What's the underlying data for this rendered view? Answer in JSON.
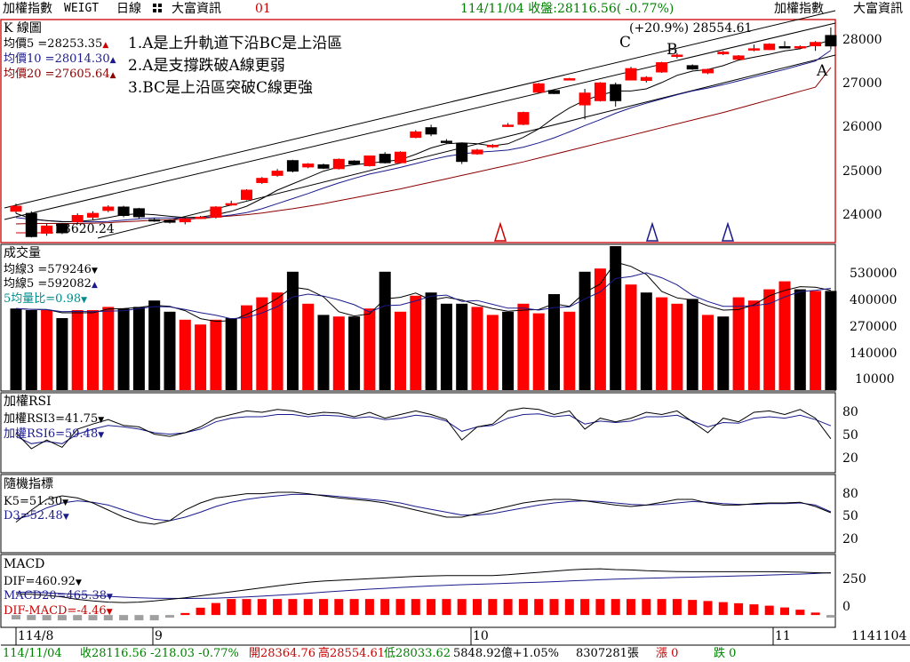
{
  "topbar": {
    "index_name": "加權指數",
    "code": "WEIGT",
    "period": "日線",
    "vendor": "大富資訊",
    "page_no": "01",
    "quote": "114/11/04 收盤:28116.56( -0.77%)",
    "right_name": "加權指數",
    "right_vendor": "大富資訊"
  },
  "colors": {
    "up": "#ff0000",
    "down": "#000000",
    "ma5": "#000000",
    "ma10": "#1a1a8c",
    "ma20": "#8b0000",
    "quote_green": "#008000",
    "frame_red": "#cc0000",
    "vol_ratio_cyan": "#008b8b"
  },
  "kline": {
    "title": "K 線圖",
    "ma_labels": [
      "均價5 =28253.35",
      "均價10 =28014.30",
      "均價20 =27605.64"
    ],
    "high_note": "(+20.9%) 28554.61",
    "low_note": "23620.24",
    "notes": [
      "1.A是上升軌道下沿BC是上沿區",
      "2.A是支撐跌破A線更弱",
      "3.BC是上沿區突破C線更強"
    ],
    "trend_labels": [
      "A",
      "B",
      "C"
    ],
    "y_ticks": [
      "28000",
      "27000",
      "26000",
      "25000",
      "24000"
    ]
  },
  "volume": {
    "title": "成交量",
    "labels": [
      "均線3 =579246",
      "均線5 =592082",
      "5均量比=0.98"
    ],
    "y_ticks": [
      "530000",
      "400000",
      "270000",
      "140000",
      "10000"
    ]
  },
  "rsi": {
    "title": "加權RSI",
    "labels": [
      "加權RSI3=41.75",
      "加權RSI6=59.48"
    ],
    "y_ticks": [
      "80",
      "50",
      "20"
    ]
  },
  "kd": {
    "title": "隨機指標",
    "labels": [
      "K5=51.30",
      "D3=52.48"
    ],
    "y_ticks": [
      "80",
      "50",
      "20"
    ]
  },
  "macd": {
    "title": "MACD",
    "labels": [
      "DIF=460.92",
      "MACD20=465.38",
      "DIF-MACD=-4.46"
    ],
    "y_ticks": [
      "250",
      "0"
    ]
  },
  "x_axis": {
    "labels": [
      "114/8",
      "9",
      "10",
      "11"
    ],
    "right_label": "1141104"
  },
  "bottombar": {
    "date": "114/11/04",
    "close": "收28116.56 -218.03 -0.77%",
    "open": "開28364.76",
    "high": "高28554.61",
    "low": "低28033.62",
    "amount": "5848.92億+1.05%",
    "volume": "8307281張",
    "up_label": "漲 0",
    "down_label": "跌 0"
  },
  "chart_data": {
    "type": "candlestick",
    "candles": [
      {
        "o": 24200,
        "c": 24320,
        "h": 24380,
        "l": 24150
      },
      {
        "o": 24150,
        "c": 23600,
        "h": 24200,
        "l": 23580
      },
      {
        "o": 23680,
        "c": 23850,
        "h": 23900,
        "l": 23620
      },
      {
        "o": 23900,
        "c": 23690,
        "h": 23920,
        "l": 23660
      },
      {
        "o": 23950,
        "c": 24100,
        "h": 24150,
        "l": 23900
      },
      {
        "o": 24060,
        "c": 24150,
        "h": 24200,
        "l": 24000
      },
      {
        "o": 24220,
        "c": 24300,
        "h": 24340,
        "l": 24180
      },
      {
        "o": 24300,
        "c": 24100,
        "h": 24330,
        "l": 24060
      },
      {
        "o": 24260,
        "c": 24070,
        "h": 24280,
        "l": 24020
      },
      {
        "o": 24000,
        "c": 23990,
        "h": 24040,
        "l": 23950
      },
      {
        "o": 23980,
        "c": 23940,
        "h": 24010,
        "l": 23910
      },
      {
        "o": 23950,
        "c": 24020,
        "h": 24060,
        "l": 23890
      },
      {
        "o": 24050,
        "c": 24060,
        "h": 24090,
        "l": 24020
      },
      {
        "o": 24060,
        "c": 24300,
        "h": 24320,
        "l": 24030
      },
      {
        "o": 24360,
        "c": 24380,
        "h": 24450,
        "l": 24330
      },
      {
        "o": 24480,
        "c": 24700,
        "h": 24720,
        "l": 24460
      },
      {
        "o": 24880,
        "c": 24980,
        "h": 25010,
        "l": 24850
      },
      {
        "o": 25050,
        "c": 25150,
        "h": 25200,
        "l": 25020
      },
      {
        "o": 25400,
        "c": 25150,
        "h": 25420,
        "l": 25120
      },
      {
        "o": 25250,
        "c": 25320,
        "h": 25340,
        "l": 25220
      },
      {
        "o": 25300,
        "c": 25220,
        "h": 25330,
        "l": 25200
      },
      {
        "o": 25210,
        "c": 25430,
        "h": 25450,
        "l": 25190
      },
      {
        "o": 25390,
        "c": 25320,
        "h": 25410,
        "l": 25300
      },
      {
        "o": 25280,
        "c": 25510,
        "h": 25520,
        "l": 25260
      },
      {
        "o": 25550,
        "c": 25350,
        "h": 25600,
        "l": 25330
      },
      {
        "o": 25350,
        "c": 25600,
        "h": 25620,
        "l": 25330
      },
      {
        "o": 25950,
        "c": 26080,
        "h": 26120,
        "l": 25930
      },
      {
        "o": 26180,
        "c": 26030,
        "h": 26250,
        "l": 25980
      },
      {
        "o": 25860,
        "c": 25840,
        "h": 25910,
        "l": 25800
      },
      {
        "o": 25810,
        "c": 25380,
        "h": 25820,
        "l": 25320
      },
      {
        "o": 25560,
        "c": 25650,
        "h": 25680,
        "l": 25540
      },
      {
        "o": 25750,
        "c": 25760,
        "h": 25790,
        "l": 25700
      },
      {
        "o": 26220,
        "c": 26240,
        "h": 26290,
        "l": 26200
      },
      {
        "o": 26260,
        "c": 26540,
        "h": 26560,
        "l": 26240
      },
      {
        "o": 27020,
        "c": 27220,
        "h": 27240,
        "l": 27000
      },
      {
        "o": 27060,
        "c": 26990,
        "h": 27080,
        "l": 26980
      },
      {
        "o": 27320,
        "c": 27340,
        "h": 27360,
        "l": 27300
      },
      {
        "o": 26720,
        "c": 27000,
        "h": 27100,
        "l": 26380
      },
      {
        "o": 26820,
        "c": 27240,
        "h": 27260,
        "l": 26800
      },
      {
        "o": 27200,
        "c": 26820,
        "h": 27250,
        "l": 26680
      },
      {
        "o": 27310,
        "c": 27580,
        "h": 27620,
        "l": 27300
      },
      {
        "o": 27300,
        "c": 27370,
        "h": 27400,
        "l": 27250
      },
      {
        "o": 27500,
        "c": 27720,
        "h": 27740,
        "l": 27480
      },
      {
        "o": 27870,
        "c": 27900,
        "h": 27950,
        "l": 27820
      },
      {
        "o": 27650,
        "c": 27570,
        "h": 27680,
        "l": 27550
      },
      {
        "o": 27480,
        "c": 27560,
        "h": 27580,
        "l": 27450
      },
      {
        "o": 27930,
        "c": 27970,
        "h": 28000,
        "l": 27900
      },
      {
        "o": 27800,
        "c": 27880,
        "h": 27900,
        "l": 27780
      },
      {
        "o": 28020,
        "c": 28050,
        "h": 28150,
        "l": 27990
      },
      {
        "o": 28030,
        "c": 28160,
        "h": 28180,
        "l": 28020
      },
      {
        "o": 28100,
        "c": 28080,
        "h": 28230,
        "l": 28060
      },
      {
        "o": 28070,
        "c": 28100,
        "h": 28130,
        "l": 28040
      },
      {
        "o": 28120,
        "c": 28200,
        "h": 28230,
        "l": 28000
      },
      {
        "o": 28364.76,
        "c": 28116.56,
        "h": 28554.61,
        "l": 28033.62
      }
    ],
    "ma5": [
      24150,
      24020,
      23980,
      23950,
      23960,
      23990,
      24050,
      24120,
      24140,
      24120,
      24080,
      24050,
      24060,
      24120,
      24200,
      24320,
      24500,
      24700,
      24850,
      25000,
      25150,
      25250,
      25300,
      25340,
      25380,
      25420,
      25550,
      25700,
      25800,
      25820,
      25800,
      25750,
      25800,
      25950,
      26150,
      26420,
      26650,
      26830,
      26950,
      27050,
      27050,
      27100,
      27250,
      27420,
      27520,
      27560,
      27650,
      27780,
      27850,
      27920,
      28000,
      28050,
      28150,
      28253.35
    ],
    "ma10": [
      24050,
      24010,
      23980,
      23960,
      23950,
      23950,
      23960,
      23990,
      24020,
      24040,
      24040,
      24040,
      24050,
      24070,
      24110,
      24170,
      24260,
      24380,
      24500,
      24620,
      24750,
      24870,
      24980,
      25080,
      25160,
      25240,
      25330,
      25420,
      25500,
      25560,
      25600,
      25620,
      25650,
      25720,
      25820,
      25940,
      26080,
      26230,
      26370,
      26520,
      26650,
      26760,
      26860,
      26960,
      27050,
      27120,
      27200,
      27290,
      27380,
      27470,
      27560,
      27660,
      27760,
      28014.3
    ],
    "ma20": [
      23900,
      23910,
      23910,
      23910,
      23910,
      23920,
      23930,
      23950,
      23970,
      23990,
      24000,
      24010,
      24030,
      24060,
      24090,
      24120,
      24160,
      24210,
      24260,
      24320,
      24380,
      24450,
      24520,
      24590,
      24660,
      24730,
      24810,
      24890,
      24970,
      25050,
      25130,
      25210,
      25290,
      25370,
      25460,
      25550,
      25640,
      25730,
      25820,
      25910,
      26000,
      26090,
      26180,
      26270,
      26360,
      26450,
      26540,
      26640,
      26740,
      26840,
      26940,
      27040,
      27140,
      27605.64
    ],
    "volume": {
      "values": [
        510000,
        500000,
        500000,
        450000,
        500000,
        500000,
        520000,
        510000,
        520000,
        560000,
        490000,
        440000,
        410000,
        440000,
        450000,
        530000,
        580000,
        610000,
        740000,
        540000,
        470000,
        460000,
        460000,
        510000,
        740000,
        490000,
        590000,
        610000,
        540000,
        540000,
        520000,
        470000,
        490000,
        540000,
        480000,
        600000,
        490000,
        740000,
        760000,
        900000,
        660000,
        610000,
        580000,
        540000,
        570000,
        470000,
        460000,
        580000,
        560000,
        630000,
        680000,
        630000,
        620000,
        620000
      ],
      "up": [
        false,
        false,
        true,
        false,
        true,
        true,
        true,
        false,
        false,
        false,
        false,
        true,
        true,
        true,
        false,
        true,
        true,
        true,
        false,
        true,
        false,
        true,
        false,
        true,
        false,
        true,
        true,
        false,
        false,
        false,
        true,
        true,
        false,
        true,
        true,
        false,
        true,
        false,
        true,
        false,
        true,
        false,
        true,
        true,
        false,
        true,
        false,
        true,
        true,
        true,
        true,
        false,
        true,
        false
      ]
    },
    "rsi3": [
      50,
      28,
      40,
      30,
      55,
      62,
      68,
      60,
      58,
      48,
      45,
      50,
      58,
      70,
      75,
      80,
      78,
      82,
      80,
      75,
      78,
      77,
      72,
      78,
      70,
      75,
      80,
      75,
      68,
      40,
      58,
      62,
      80,
      84,
      82,
      75,
      80,
      55,
      70,
      65,
      70,
      78,
      75,
      80,
      65,
      50,
      70,
      65,
      78,
      80,
      75,
      82,
      70,
      41.75
    ],
    "rsi6": [
      45,
      35,
      38,
      35,
      48,
      55,
      60,
      58,
      55,
      50,
      48,
      50,
      55,
      65,
      70,
      72,
      72,
      75,
      75,
      72,
      74,
      73,
      70,
      72,
      68,
      70,
      74,
      72,
      66,
      52,
      58,
      60,
      70,
      75,
      76,
      72,
      74,
      62,
      66,
      64,
      66,
      72,
      72,
      74,
      66,
      58,
      64,
      63,
      70,
      72,
      70,
      74,
      68,
      59.48
    ],
    "k": [
      38,
      55,
      70,
      75,
      72,
      65,
      55,
      45,
      38,
      35,
      40,
      55,
      65,
      72,
      75,
      78,
      78,
      80,
      80,
      78,
      75,
      72,
      70,
      68,
      65,
      60,
      55,
      50,
      45,
      45,
      50,
      55,
      60,
      65,
      68,
      70,
      70,
      68,
      65,
      62,
      60,
      62,
      66,
      70,
      70,
      65,
      62,
      62,
      64,
      65,
      65,
      66,
      60,
      51.3
    ],
    "d": [
      42,
      48,
      58,
      65,
      68,
      66,
      62,
      55,
      48,
      42,
      40,
      45,
      52,
      60,
      66,
      70,
      73,
      75,
      77,
      77,
      76,
      74,
      72,
      70,
      68,
      65,
      60,
      56,
      52,
      48,
      48,
      50,
      54,
      58,
      62,
      65,
      67,
      68,
      67,
      65,
      63,
      62,
      63,
      65,
      67,
      66,
      64,
      63,
      63,
      64,
      64,
      65,
      62,
      52.48
    ],
    "dif": [
      200,
      195,
      180,
      160,
      130,
      110,
      95,
      90,
      95,
      110,
      130,
      150,
      175,
      200,
      225,
      250,
      275,
      300,
      325,
      345,
      360,
      370,
      380,
      390,
      400,
      410,
      420,
      425,
      430,
      430,
      428,
      430,
      440,
      455,
      470,
      485,
      500,
      510,
      515,
      505,
      500,
      490,
      485,
      480,
      478,
      478,
      478,
      478,
      478,
      478,
      476,
      472,
      466,
      460.92
    ],
    "macd_sig": [
      220,
      218,
      212,
      203,
      192,
      180,
      168,
      158,
      150,
      145,
      142,
      141,
      142,
      146,
      152,
      160,
      170,
      181,
      193,
      206,
      220,
      233,
      246,
      258,
      269,
      280,
      290,
      299,
      307,
      314,
      320,
      326,
      332,
      339,
      346,
      353,
      361,
      369,
      377,
      384,
      390,
      395,
      400,
      405,
      410,
      415,
      420,
      425,
      430,
      436,
      442,
      448,
      455,
      465.38
    ],
    "osc_last": -4.46,
    "y_range_kline": [
      23500,
      28700
    ],
    "y_range_volume": [
      0,
      900000
    ],
    "y_range_osc": [
      0,
      100
    ],
    "y_range_macd": [
      -200,
      650
    ]
  }
}
